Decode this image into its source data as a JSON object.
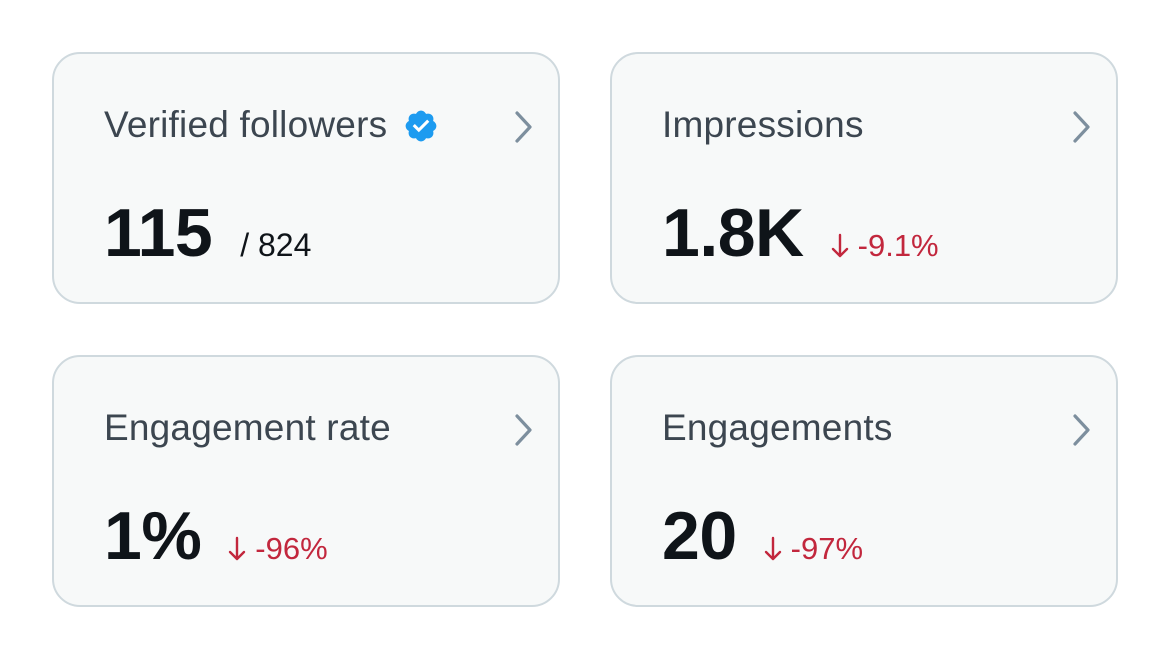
{
  "cards": [
    {
      "title": "Verified followers",
      "value": "115",
      "secondary": "/ 824",
      "change": "",
      "icon": "verified-badge-icon",
      "accent": "#1d9bf0"
    },
    {
      "title": "Impressions",
      "value": "1.8K",
      "secondary": "",
      "change": "-9.1%",
      "icon": "",
      "accent": "#c2273d"
    },
    {
      "title": "Engagement rate",
      "value": "1%",
      "secondary": "",
      "change": "-96%",
      "icon": "",
      "accent": "#c2273d"
    },
    {
      "title": "Engagements",
      "value": "20",
      "secondary": "",
      "change": "-97%",
      "icon": "",
      "accent": "#c2273d"
    }
  ],
  "colors": {
    "border": "#cfd9de",
    "card_background": "#f7f9f9",
    "title_text": "#3c4650",
    "value_text": "#0f1419",
    "negative_change": "#c2273d",
    "verified_blue": "#1d9bf0",
    "chevron": "#7d8f9e"
  }
}
